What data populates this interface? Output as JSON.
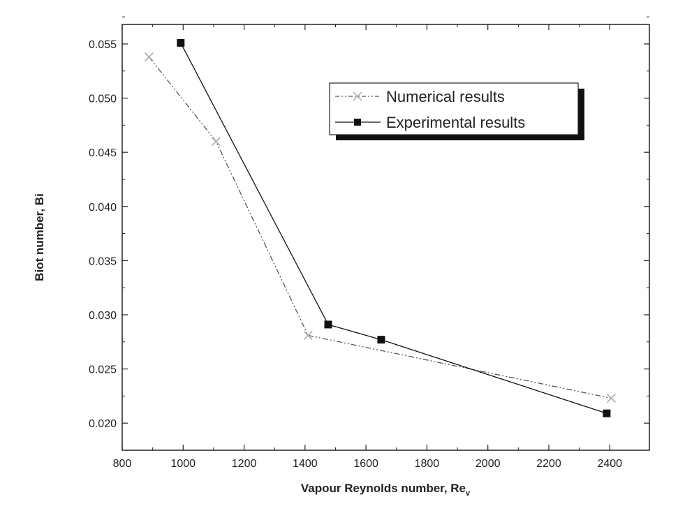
{
  "chart_data": {
    "type": "line",
    "title": "",
    "xlabel": "Vapour Reynolds number, Re",
    "xlabel_sub": "v",
    "ylabel": "Biot number, Bi",
    "xlim": [
      800,
      2530
    ],
    "ylim": [
      0.0175,
      0.0568
    ],
    "xticks": [
      800,
      1000,
      1200,
      1400,
      1600,
      1800,
      2000,
      2200,
      2400
    ],
    "xtick_labels": [
      "800",
      "1000",
      "1200",
      "1400",
      "1600",
      "1800",
      "2000",
      "2200",
      "2400"
    ],
    "yticks": [
      0.02,
      0.025,
      0.03,
      0.035,
      0.04,
      0.045,
      0.05,
      0.055
    ],
    "ytick_labels": [
      "0.020",
      "0.025",
      "0.030",
      "0.035",
      "0.040",
      "0.045",
      "0.050",
      "0.055"
    ],
    "grid": false,
    "legend_position": "top-right",
    "series": [
      {
        "name": "Numerical results",
        "marker": "x",
        "line": "dash-dot-dot",
        "color": "#555555",
        "x": [
          888,
          1108,
          1410,
          2405
        ],
        "y": [
          0.0538,
          0.046,
          0.0281,
          0.0223
        ]
      },
      {
        "name": "Experimental results",
        "marker": "square",
        "line": "solid",
        "color": "#111111",
        "x": [
          992,
          1476,
          1650,
          2390
        ],
        "y": [
          0.0551,
          0.0291,
          0.0277,
          0.0209
        ]
      }
    ]
  }
}
